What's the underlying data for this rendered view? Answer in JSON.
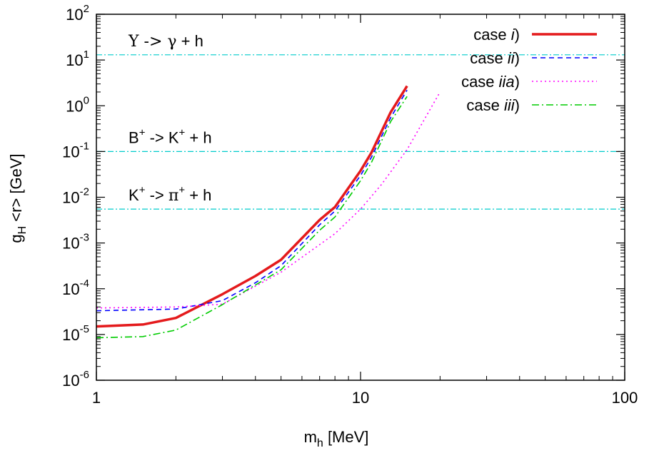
{
  "chart_data": {
    "type": "line",
    "xscale": "log",
    "yscale": "log",
    "xlim": [
      1,
      100
    ],
    "ylim": [
      1e-06,
      100
    ],
    "xlabel": {
      "main": "m",
      "sub": "h",
      "rest": " [MeV]"
    },
    "ylabel": {
      "main": "g",
      "sub": "H",
      "rest": " <r> [GeV]"
    },
    "x_ticks": [
      {
        "value": 1,
        "label": "1"
      },
      {
        "value": 10,
        "label": "10"
      },
      {
        "value": 100,
        "label": "100"
      }
    ],
    "y_ticks": [
      {
        "value": 1e-06,
        "base": "10",
        "exp": "-6"
      },
      {
        "value": 1e-05,
        "base": "10",
        "exp": "-5"
      },
      {
        "value": 0.0001,
        "base": "10",
        "exp": "-4"
      },
      {
        "value": 0.001,
        "base": "10",
        "exp": "-3"
      },
      {
        "value": 0.01,
        "base": "10",
        "exp": "-2"
      },
      {
        "value": 0.1,
        "base": "10",
        "exp": "-1"
      },
      {
        "value": 1,
        "base": "10",
        "exp": "0"
      },
      {
        "value": 10,
        "base": "10",
        "exp": "1"
      },
      {
        "value": 100,
        "base": "10",
        "exp": "2"
      }
    ],
    "legend_position": "top-right",
    "series": [
      {
        "name_prefix": "case ",
        "name_italic": "i",
        "name_suffix": ")",
        "color": "#e41a1c",
        "style": "solid",
        "x": [
          1,
          1.5,
          2,
          3,
          4,
          5,
          7,
          8,
          10,
          11,
          13,
          15
        ],
        "y": [
          1.5e-05,
          1.65e-05,
          2.3e-05,
          7.6e-05,
          0.00019,
          0.00043,
          0.0032,
          0.0061,
          0.038,
          0.095,
          0.72,
          2.7
        ]
      },
      {
        "name_prefix": "case ",
        "name_italic": "ii",
        "name_suffix": ")",
        "color": "#0000ff",
        "style": "dashed",
        "x": [
          1,
          2,
          3,
          4,
          5,
          7,
          8,
          10,
          11,
          13,
          15
        ],
        "y": [
          3.3e-05,
          3.6e-05,
          5.5e-05,
          0.000135,
          0.00032,
          0.0025,
          0.005,
          0.03,
          0.075,
          0.55,
          2.2
        ]
      },
      {
        "name_prefix": "case ",
        "name_italic": "iia",
        "name_suffix": ")",
        "color": "#ff00ff",
        "style": "dotted",
        "x": [
          1,
          2,
          3,
          5,
          8,
          10,
          12,
          15,
          20
        ],
        "y": [
          3.8e-05,
          4e-05,
          4.6e-05,
          0.00023,
          0.0016,
          0.0055,
          0.019,
          0.11,
          2.0
        ]
      },
      {
        "name_prefix": "case ",
        "name_italic": "iii",
        "name_suffix": ")",
        "color": "#00cc00",
        "style": "dashdot",
        "x": [
          1,
          1.5,
          2,
          3,
          5,
          7,
          8,
          10,
          11,
          13,
          15
        ],
        "y": [
          8.5e-06,
          9e-06,
          1.25e-05,
          4.5e-05,
          0.00026,
          0.0019,
          0.0037,
          0.023,
          0.058,
          0.45,
          1.6
        ]
      }
    ],
    "hlines": [
      {
        "y": 13,
        "color": "#00cccc",
        "label_left": "Υ -> ",
        "label_sym": "γ",
        "label_right": " + h"
      },
      {
        "y": 0.1,
        "color": "#00cccc",
        "label_left": "B",
        "label_sup": "+",
        "label_mid": " -> K",
        "label_sup2": "+",
        "label_right": " + h"
      },
      {
        "y": 0.0055,
        "color": "#00cccc",
        "label_left": "K",
        "label_sup": "+",
        "label_mid": " -> ",
        "label_sym": "π",
        "label_sup2": "+",
        "label_right": " + h"
      }
    ]
  }
}
